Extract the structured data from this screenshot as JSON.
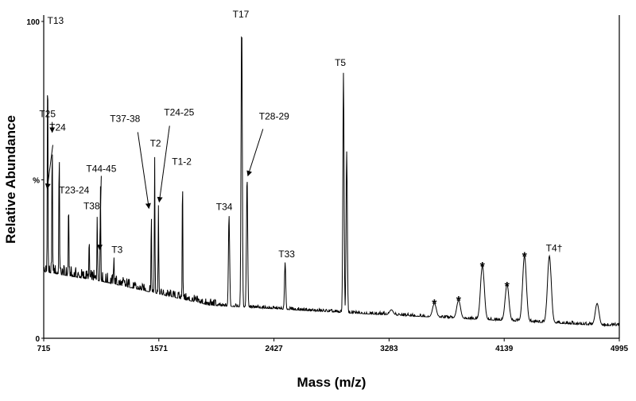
{
  "chart_data": {
    "type": "line",
    "xlabel": "Mass (m/z)",
    "ylabel": "Relative Abundance",
    "xlim": [
      715,
      4995
    ],
    "ylim": [
      0,
      100
    ],
    "x_ticks": [
      "715",
      "1571",
      "2427",
      "3283",
      "4139",
      "4995"
    ],
    "y_ticks": [
      {
        "label": "100",
        "value": 100
      },
      {
        "label": "%",
        "value": 50
      },
      {
        "label": "0",
        "value": 0
      }
    ],
    "peaks": [
      {
        "x": 744,
        "y": 91
      },
      {
        "x": 778,
        "y": 64
      },
      {
        "x": 830,
        "y": 61
      },
      {
        "x": 900,
        "y": 44
      },
      {
        "x": 1053,
        "y": 32
      },
      {
        "x": 1113,
        "y": 39
      },
      {
        "x": 1137,
        "y": 48
      },
      {
        "x": 1237,
        "y": 26
      },
      {
        "x": 1515,
        "y": 40
      },
      {
        "x": 1540,
        "y": 58
      },
      {
        "x": 1568,
        "y": 42
      },
      {
        "x": 1747,
        "y": 53
      },
      {
        "x": 2093,
        "y": 39
      },
      {
        "x": 2187,
        "y": 100
      },
      {
        "x": 2227,
        "y": 51
      },
      {
        "x": 2510,
        "y": 24
      },
      {
        "x": 2944,
        "y": 84
      },
      {
        "x": 2968,
        "y": 59
      },
      {
        "x": 3300,
        "y": 9
      },
      {
        "x": 3620,
        "y": 11
      },
      {
        "x": 3800,
        "y": 12
      },
      {
        "x": 3977,
        "y": 23
      },
      {
        "x": 4160,
        "y": 17
      },
      {
        "x": 4290,
        "y": 26
      },
      {
        "x": 4475,
        "y": 26
      },
      {
        "x": 4830,
        "y": 11
      }
    ],
    "annotations": [
      {
        "text": "T13",
        "x": 744,
        "y": 91
      },
      {
        "text": "T25",
        "x": 778,
        "y": 64
      },
      {
        "text": "T24",
        "x": 830,
        "y": 61
      },
      {
        "text": "T23-24",
        "x": 900,
        "y": 44
      },
      {
        "text": "T38",
        "x": 1113,
        "y": 39
      },
      {
        "text": "T44-45",
        "x": 1137,
        "y": 48
      },
      {
        "text": "T3",
        "x": 1237,
        "y": 26
      },
      {
        "text": "T37-38",
        "x": 1515,
        "y": 40
      },
      {
        "text": "T2",
        "x": 1540,
        "y": 58
      },
      {
        "text": "T24-25",
        "x": 1568,
        "y": 42
      },
      {
        "text": "T1-2",
        "x": 1747,
        "y": 53
      },
      {
        "text": "T34",
        "x": 2093,
        "y": 39
      },
      {
        "text": "T17",
        "x": 2187,
        "y": 100
      },
      {
        "text": "T28-29",
        "x": 2227,
        "y": 51
      },
      {
        "text": "T33",
        "x": 2510,
        "y": 24
      },
      {
        "text": "T5",
        "x": 2944,
        "y": 84
      },
      {
        "text": "*",
        "x": 3620,
        "y": 11
      },
      {
        "text": "*",
        "x": 3800,
        "y": 12
      },
      {
        "text": "*",
        "x": 3977,
        "y": 23
      },
      {
        "text": "*",
        "x": 4160,
        "y": 17
      },
      {
        "text": "*",
        "x": 4290,
        "y": 26
      },
      {
        "text": "T4†",
        "x": 4475,
        "y": 26
      }
    ],
    "grid": false,
    "legend": "none",
    "colors": {
      "line": "#000000",
      "background": "#ffffff"
    }
  }
}
